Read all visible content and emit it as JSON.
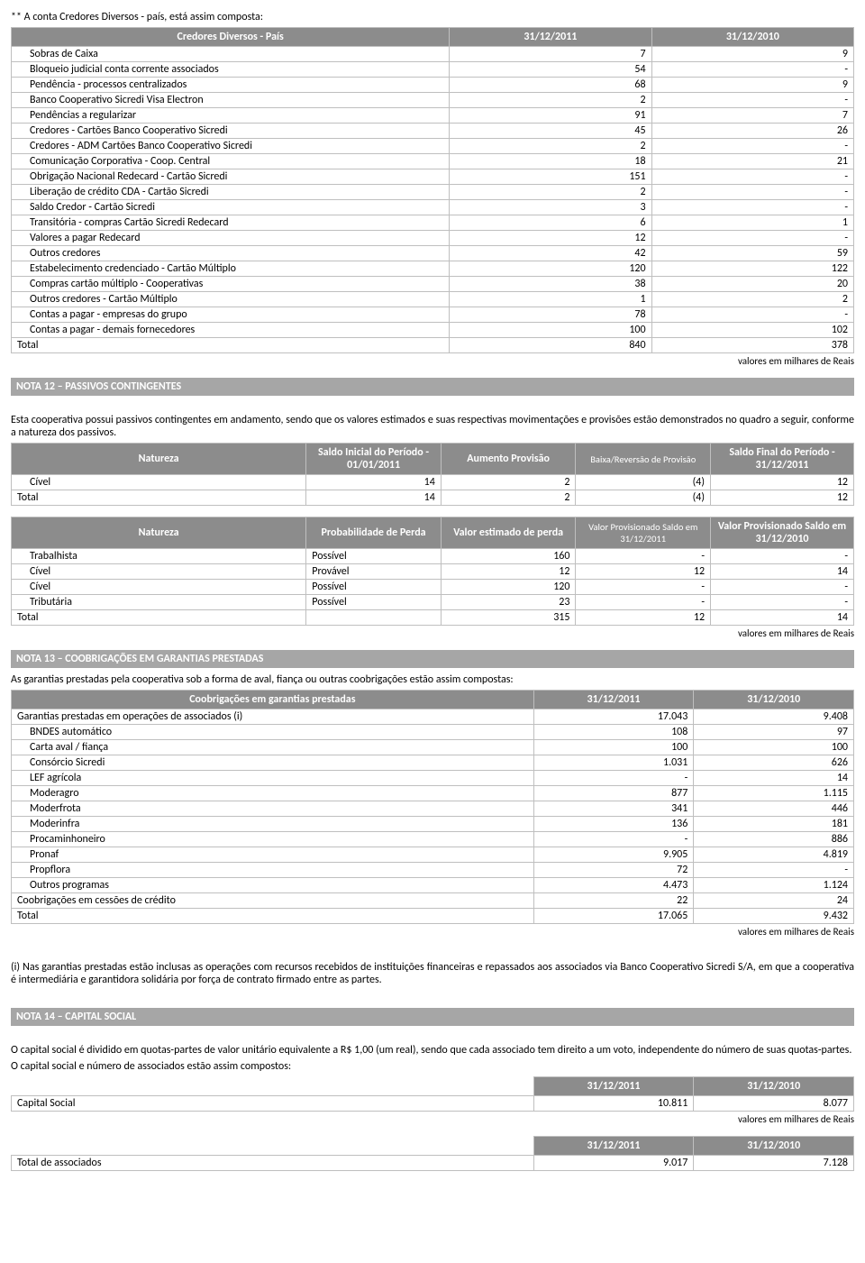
{
  "intro1": "** A conta Credores Diversos - país, está assim composta:",
  "t1": {
    "headers": [
      "Credores Diversos - País",
      "31/12/2011",
      "31/12/2010"
    ],
    "rows": [
      [
        "Sobras de Caixa",
        "7",
        "9"
      ],
      [
        "Bloqueio judicial conta corrente associados",
        "54",
        "-"
      ],
      [
        "Pendência - processos centralizados",
        "68",
        "9"
      ],
      [
        "Banco Cooperativo Sicredi Visa Electron",
        "2",
        "-"
      ],
      [
        "Pendências a regularizar",
        "91",
        "7"
      ],
      [
        "Credores - Cartões Banco Cooperativo Sicredi",
        "45",
        "26"
      ],
      [
        "Credores - ADM Cartões Banco Cooperativo Sicredi",
        "2",
        "-"
      ],
      [
        "Comunicação Corporativa - Coop. Central",
        "18",
        "21"
      ],
      [
        "Obrigação Nacional Redecard - Cartão Sicredi",
        "151",
        "-"
      ],
      [
        "Liberação de crédito CDA - Cartão Sicredi",
        "2",
        "-"
      ],
      [
        "Saldo Credor - Cartão Sicredi",
        "3",
        "-"
      ],
      [
        "Transitória - compras Cartão Sicredi Redecard",
        "6",
        "1"
      ],
      [
        "Valores a pagar Redecard",
        "12",
        "-"
      ],
      [
        "Outros credores",
        "42",
        "59"
      ],
      [
        "Estabelecimento credenciado - Cartão Múltiplo",
        "120",
        "122"
      ],
      [
        "Compras cartão múltiplo - Cooperativas",
        "38",
        "20"
      ],
      [
        "Outros credores - Cartão Múltiplo",
        "1",
        "2"
      ],
      [
        "Contas a pagar - empresas do grupo",
        "78",
        "-"
      ],
      [
        "Contas a pagar - demais fornecedores",
        "100",
        "102"
      ]
    ],
    "total": [
      "Total",
      "840",
      "378"
    ]
  },
  "caption_reais": "valores em milhares de Reais",
  "nota12_title": "NOTA 12 – PASSIVOS CONTINGENTES",
  "nota12_text": "Esta cooperativa possui passivos contingentes em andamento, sendo que os valores estimados e suas respectivas movimentações e provisões estão demonstrados no quadro a seguir, conforme a natureza dos passivos.",
  "t2": {
    "headers": [
      "Natureza",
      "Saldo Inicial do Período - 01/01/2011",
      "Aumento Provisão",
      "Baixa/Reversão de Provisão",
      "Saldo Final do Período - 31/12/2011"
    ],
    "rows": [
      [
        "Cível",
        "14",
        "2",
        "(4)",
        "12"
      ]
    ],
    "total": [
      "Total",
      "14",
      "2",
      "(4)",
      "12"
    ]
  },
  "t3": {
    "headers": [
      "Natureza",
      "Probabilidade de Perda",
      "Valor estimado de perda",
      "Valor Provisionado   Saldo em 31/12/2011",
      "Valor Provisionado Saldo em 31/12/2010"
    ],
    "rows": [
      [
        "Trabalhista",
        "Possível",
        "160",
        "-",
        "-"
      ],
      [
        "Cível",
        "Provável",
        "12",
        "12",
        "14"
      ],
      [
        "Cível",
        "Possível",
        "120",
        "-",
        "-"
      ],
      [
        "Tributária",
        "Possível",
        "23",
        "-",
        "-"
      ]
    ],
    "total": [
      "Total",
      "",
      "315",
      "12",
      "14"
    ]
  },
  "nota13_title": "NOTA 13 – COOBRIGAÇÕES EM GARANTIAS PRESTADAS",
  "nota13_text": "As garantias prestadas pela cooperativa sob a forma de aval, fiança ou outras coobrigações estão assim compostas:",
  "t4": {
    "headers": [
      "Coobrigações em garantias prestadas",
      "31/12/2011",
      "31/12/2010"
    ],
    "toprow": [
      "Garantias prestadas em operações de associados (i)",
      "17.043",
      "9.408"
    ],
    "rows": [
      [
        "BNDES automático",
        "108",
        "97"
      ],
      [
        "Carta aval / fiança",
        "100",
        "100"
      ],
      [
        "Consórcio Sicredi",
        "1.031",
        "626"
      ],
      [
        "LEF agrícola",
        "-",
        "14"
      ],
      [
        "Moderagro",
        "877",
        "1.115"
      ],
      [
        "Moderfrota",
        "341",
        "446"
      ],
      [
        "Moderinfra",
        "136",
        "181"
      ],
      [
        "Procaminhoneiro",
        "-",
        "886"
      ],
      [
        "Pronaf",
        "9.905",
        "4.819"
      ],
      [
        "Propflora",
        "72",
        "-"
      ],
      [
        "Outros programas",
        "4.473",
        "1.124"
      ]
    ],
    "midrow": [
      "Coobrigações em cessões de crédito",
      "22",
      "24"
    ],
    "total": [
      "Total",
      "17.065",
      "9.432"
    ]
  },
  "nota13_foot": "(i) Nas garantias prestadas estão inclusas as operações com recursos recebidos de instituições financeiras e repassados aos associados via Banco Cooperativo Sicredi S/A, em que a cooperativa  é intermediária e garantidora solidária por força de contrato firmado entre as partes.",
  "nota14_title": "NOTA 14 – CAPITAL SOCIAL",
  "nota14_text1": "O capital social é dividido em quotas-partes de valor unitário equivalente a R$ 1,00 (um real), sendo que cada associado tem direito a um voto, independente do número de suas quotas-partes.",
  "nota14_text2": "O capital social e número de associados estão assim compostos:",
  "t5": {
    "headers": [
      "",
      "31/12/2011",
      "31/12/2010"
    ],
    "rows": [
      [
        "Capital Social",
        "10.811",
        "8.077"
      ]
    ]
  },
  "t6": {
    "headers": [
      "",
      "31/12/2011",
      "31/12/2010"
    ],
    "rows": [
      [
        "Total de associados",
        "9.017",
        "7.128"
      ]
    ]
  }
}
